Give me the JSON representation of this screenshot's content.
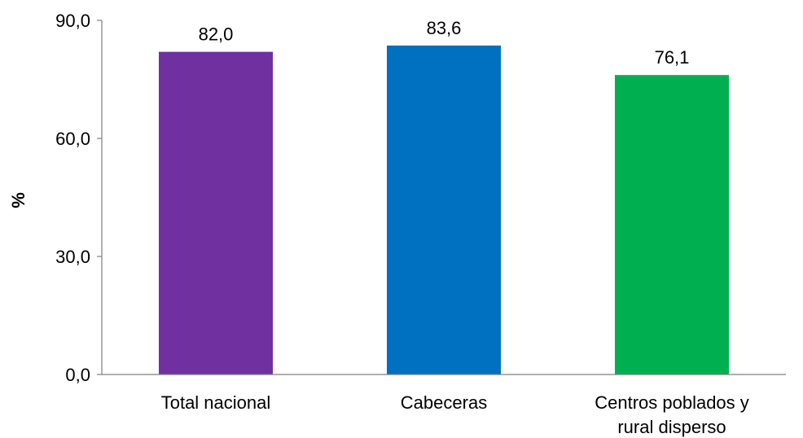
{
  "chart_data": {
    "type": "bar",
    "title": "",
    "xlabel": "",
    "ylabel": "%",
    "ylim": [
      0,
      90
    ],
    "yticks": [
      "0,0",
      "30,0",
      "60,0",
      "90,0"
    ],
    "ytick_values": [
      0,
      30,
      60,
      90
    ],
    "grid": false,
    "legend": "none",
    "categories": [
      [
        "Total nacional"
      ],
      [
        "Cabeceras"
      ],
      [
        "Centros poblados y",
        "rural disperso"
      ]
    ],
    "values": [
      82.0,
      83.6,
      76.1
    ],
    "value_labels": [
      "82,0",
      "83,6",
      "76,1"
    ],
    "colors": [
      "#7030a0",
      "#0070c0",
      "#00b050"
    ]
  }
}
